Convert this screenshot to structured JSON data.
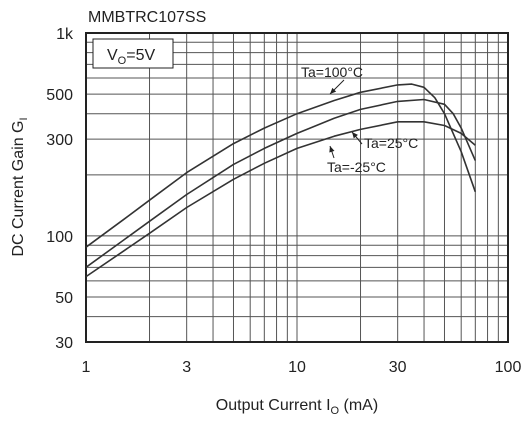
{
  "chart_data": {
    "type": "line",
    "title": "MMBTRC107SS",
    "xlabel": {
      "main": "Output Current I",
      "sub": "O",
      "unit": " (mA)"
    },
    "ylabel": {
      "main": "DC Current Gain G",
      "sub": "I"
    },
    "x_scale": "log",
    "y_scale": "log",
    "xlim": [
      1,
      100
    ],
    "ylim": [
      30,
      1000
    ],
    "x_ticks": [
      {
        "value": 1,
        "label": "1"
      },
      {
        "value": 3,
        "label": "3"
      },
      {
        "value": 10,
        "label": "10"
      },
      {
        "value": 30,
        "label": "30"
      },
      {
        "value": 100,
        "label": "100"
      }
    ],
    "y_ticks": [
      {
        "value": 30,
        "label": "30"
      },
      {
        "value": 50,
        "label": "50"
      },
      {
        "value": 100,
        "label": "100"
      },
      {
        "value": 300,
        "label": "300"
      },
      {
        "value": 500,
        "label": "500"
      },
      {
        "value": 1000,
        "label": "1k"
      }
    ],
    "grid": true,
    "condition": {
      "main": "V",
      "sub": "O",
      "rest": "=5V"
    },
    "series": [
      {
        "name": "Ta=100°C",
        "x": [
          1,
          1.5,
          2,
          3,
          5,
          7,
          10,
          15,
          20,
          30,
          35,
          40,
          45,
          50,
          60,
          70
        ],
        "y": [
          88,
          120,
          150,
          205,
          285,
          340,
          400,
          465,
          510,
          555,
          560,
          540,
          480,
          400,
          260,
          165
        ]
      },
      {
        "name": "Ta=25°C",
        "x": [
          1,
          1.5,
          2,
          3,
          5,
          7,
          10,
          15,
          20,
          30,
          40,
          50,
          55,
          60,
          70
        ],
        "y": [
          70,
          95,
          118,
          160,
          225,
          270,
          320,
          380,
          420,
          460,
          470,
          445,
          400,
          340,
          235
        ]
      },
      {
        "name": "Ta=-25°C",
        "x": [
          1,
          1.5,
          2,
          3,
          5,
          7,
          10,
          15,
          20,
          30,
          40,
          50,
          60,
          70
        ],
        "y": [
          63,
          84,
          103,
          138,
          190,
          228,
          270,
          310,
          335,
          365,
          365,
          350,
          320,
          280
        ]
      }
    ]
  }
}
